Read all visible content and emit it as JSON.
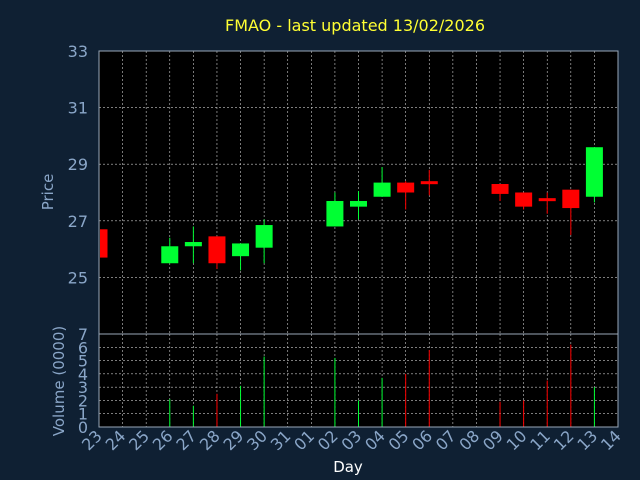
{
  "chart_data": {
    "type": "candlestick",
    "title": "FMAO - last updated 13/02/2026",
    "xlabel": "Day",
    "price_panel": {
      "ylabel": "Price",
      "ylim": [
        23,
        33
      ],
      "yticks": [
        25,
        27,
        29,
        31,
        33
      ]
    },
    "volume_panel": {
      "ylabel": "Volume (0000)",
      "ylim": [
        0,
        7
      ],
      "yticks": [
        0,
        1,
        2,
        3,
        4,
        5,
        6,
        7
      ]
    },
    "x_ticks": [
      "23",
      "24",
      "25",
      "26",
      "27",
      "28",
      "29",
      "30",
      "31",
      "01",
      "02",
      "03",
      "04",
      "05",
      "06",
      "07",
      "08",
      "09",
      "10",
      "11",
      "12",
      "13",
      "14"
    ],
    "candles": [
      {
        "day": "23",
        "open": 26.7,
        "close": 25.7,
        "high": 26.7,
        "low": 25.7,
        "volume": 0
      },
      {
        "day": "26",
        "open": 25.5,
        "close": 26.1,
        "high": 26.4,
        "low": 25.5,
        "volume": 2.1
      },
      {
        "day": "27",
        "open": 26.1,
        "close": 26.25,
        "high": 26.8,
        "low": 25.5,
        "volume": 1.6
      },
      {
        "day": "28",
        "open": 26.45,
        "close": 25.5,
        "high": 26.45,
        "low": 25.3,
        "volume": 2.5
      },
      {
        "day": "29",
        "open": 25.75,
        "close": 26.2,
        "high": 26.2,
        "low": 25.25,
        "volume": 3.1
      },
      {
        "day": "30",
        "open": 26.05,
        "close": 26.85,
        "high": 27.05,
        "low": 25.5,
        "volume": 5.3
      },
      {
        "day": "02",
        "open": 26.8,
        "close": 27.7,
        "high": 28.0,
        "low": 26.8,
        "volume": 5.2
      },
      {
        "day": "03",
        "open": 27.5,
        "close": 27.7,
        "high": 28.05,
        "low": 27.05,
        "volume": 2.0
      },
      {
        "day": "04",
        "open": 27.85,
        "close": 28.35,
        "high": 28.9,
        "low": 27.85,
        "volume": 3.7
      },
      {
        "day": "05",
        "open": 28.35,
        "close": 28.0,
        "high": 28.4,
        "low": 27.4,
        "volume": 4.0
      },
      {
        "day": "06",
        "open": 28.4,
        "close": 28.3,
        "high": 28.8,
        "low": 27.9,
        "volume": 5.8
      },
      {
        "day": "09",
        "open": 28.3,
        "close": 27.95,
        "high": 28.3,
        "low": 27.7,
        "volume": 1.9
      },
      {
        "day": "10",
        "open": 28.0,
        "close": 27.5,
        "high": 28.0,
        "low": 27.4,
        "volume": 2.0
      },
      {
        "day": "11",
        "open": 27.8,
        "close": 27.7,
        "high": 28.0,
        "low": 27.25,
        "volume": 3.5
      },
      {
        "day": "12",
        "open": 28.1,
        "close": 27.45,
        "high": 28.1,
        "low": 26.5,
        "volume": 6.2
      },
      {
        "day": "13",
        "open": 27.85,
        "close": 29.6,
        "high": 29.6,
        "low": 27.65,
        "volume": 3.0
      }
    ],
    "colors": {
      "background": "#0f2033",
      "plot_background": "#000000",
      "up": "#00ff33",
      "down": "#ff0000",
      "grid": "#c8c8c8",
      "title": "#ffff33",
      "tick": "#8aa6c8"
    },
    "grid": true
  }
}
